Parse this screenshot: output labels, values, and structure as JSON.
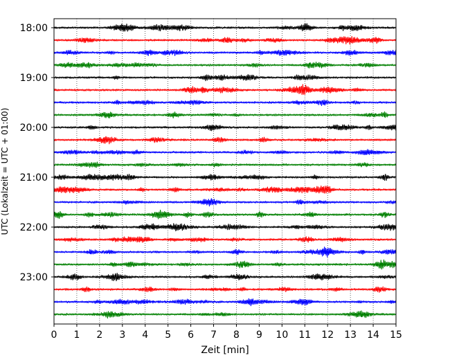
{
  "chart_data": {
    "type": "line",
    "title": "",
    "xlabel": "Zeit  [min]",
    "ylabel": "UTC (Lokalzeit = UTC + 01:00)",
    "xlim": [
      0,
      15
    ],
    "x_ticks": [
      "0",
      "1",
      "2",
      "3",
      "4",
      "5",
      "6",
      "7",
      "8",
      "9",
      "10",
      "11",
      "12",
      "13",
      "14",
      "15"
    ],
    "y_ticks": [
      "18:00",
      "19:00",
      "20:00",
      "21:00",
      "22:00",
      "23:00"
    ],
    "grid": "vertical dotted at every minute",
    "trace_interval_minutes": 15,
    "trace_start_times": [
      "18:00",
      "18:15",
      "18:30",
      "18:45",
      "19:00",
      "19:15",
      "19:30",
      "19:45",
      "20:00",
      "20:15",
      "20:30",
      "20:45",
      "21:00",
      "21:15",
      "21:30",
      "21:45",
      "22:00",
      "22:15",
      "22:30",
      "22:45",
      "23:00",
      "23:15",
      "23:30",
      "23:45"
    ],
    "color_cycle": [
      "#000000",
      "#ff0000",
      "#0000ff",
      "#008000"
    ]
  }
}
